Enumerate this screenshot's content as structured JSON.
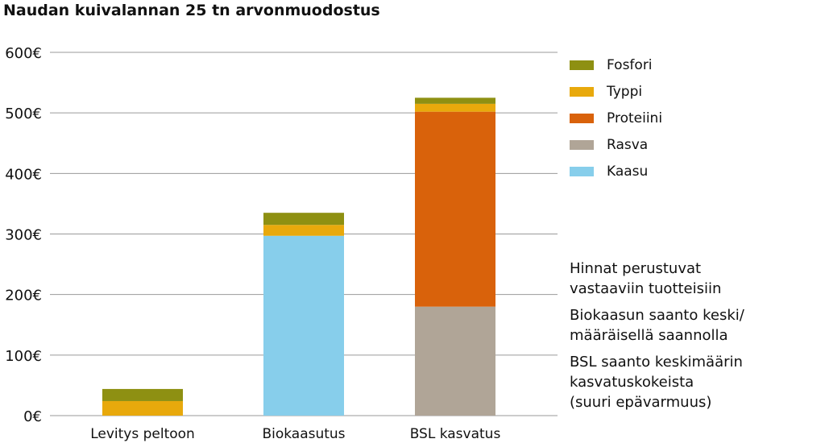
{
  "chart_data": {
    "type": "bar",
    "stacked": true,
    "title": "Naudan kuivalannan 25 tn arvonmuodostus",
    "categories": [
      "Levitys peltoon",
      "Biokaasutus",
      "BSL kasvatus"
    ],
    "series": [
      {
        "name": "Kaasu",
        "color": "#87CEEB",
        "values": [
          0,
          297,
          0
        ]
      },
      {
        "name": "Rasva",
        "color": "#B0A597",
        "values": [
          0,
          0,
          180
        ]
      },
      {
        "name": "Proteiini",
        "color": "#D9620B",
        "values": [
          0,
          0,
          322
        ]
      },
      {
        "name": "Typpi",
        "color": "#E8A90C",
        "values": [
          24,
          18,
          13
        ]
      },
      {
        "name": "Fosfori",
        "color": "#8E9012",
        "values": [
          20,
          20,
          10
        ]
      }
    ],
    "legend_order": [
      "Fosfori",
      "Typpi",
      "Proteiini",
      "Rasva",
      "Kaasu"
    ],
    "ylim": [
      0,
      600
    ],
    "yticks": [
      0,
      100,
      200,
      300,
      400,
      500,
      600
    ],
    "ytick_labels": [
      "0€",
      "100€",
      "200€",
      "300€",
      "400€",
      "500€",
      "600€"
    ],
    "grid": true,
    "legend_position": "right"
  },
  "notes": [
    "Hinnat perustuvat\nvastaaviin tuotteisiin",
    "Biokaasun saanto keski/\nmääräisellä saannolla",
    "BSL saanto keskimäärin\nkasvatuskokeista\n(suuri epävarmuus)"
  ]
}
